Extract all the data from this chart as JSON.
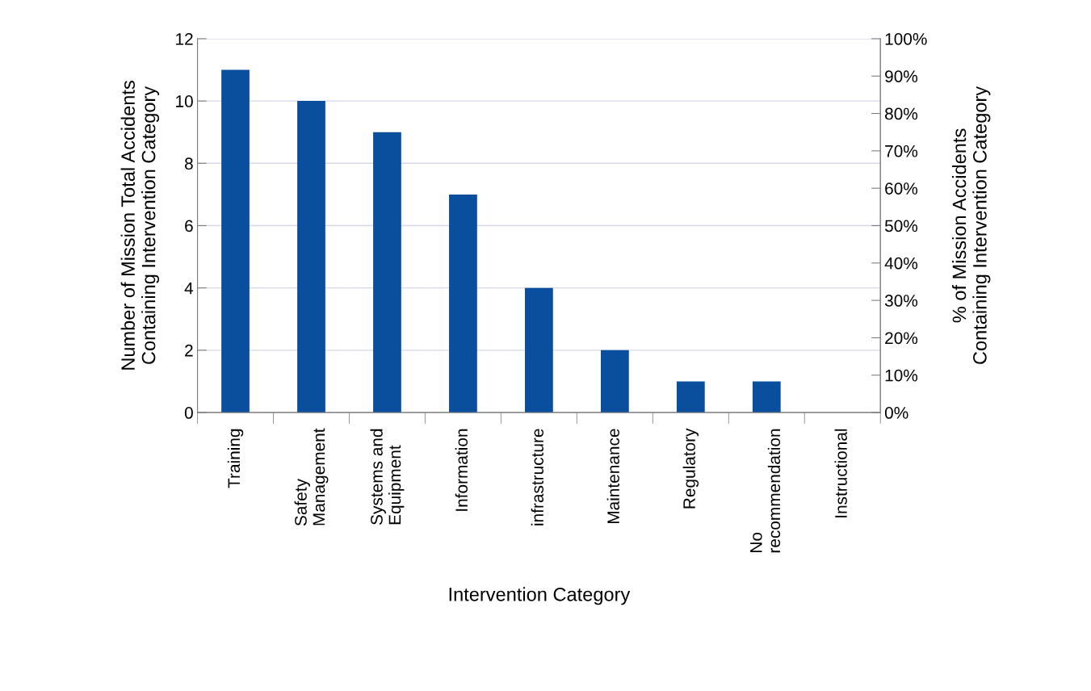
{
  "chart_data": {
    "type": "bar",
    "xlabel": "Intervention Category",
    "ylabel": "Number of Mission Total Accidents\nContaining Intervention Category",
    "y2label": "% of Mission Accidents\nContaining Intervention Category",
    "categories": [
      "Training",
      "Safety\nManagement",
      "Systems and\nEquipment",
      "Information",
      "infrastructure",
      "Maintenance",
      "Regulatory",
      "No\nrecommendation",
      "Instructional"
    ],
    "series": [
      {
        "color": "#0a4f9e",
        "values": [
          11,
          10,
          9,
          7,
          4,
          2,
          1,
          1,
          0
        ]
      }
    ],
    "ylim": [
      0,
      12
    ],
    "yticks": [
      0,
      2,
      4,
      6,
      8,
      10,
      12
    ],
    "y2lim": [
      0,
      100
    ],
    "y2ticks": [
      {
        "value": 0,
        "label": "0%"
      },
      {
        "value": 10,
        "label": "10%"
      },
      {
        "value": 20,
        "label": "20%"
      },
      {
        "value": 30,
        "label": "30%"
      },
      {
        "value": 40,
        "label": "40%"
      },
      {
        "value": 50,
        "label": "50%"
      },
      {
        "value": 60,
        "label": "60%"
      },
      {
        "value": 70,
        "label": "70%"
      },
      {
        "value": 80,
        "label": "80%"
      },
      {
        "value": 90,
        "label": "90%"
      },
      {
        "value": 100,
        "label": "100%"
      }
    ],
    "grid": "y"
  }
}
